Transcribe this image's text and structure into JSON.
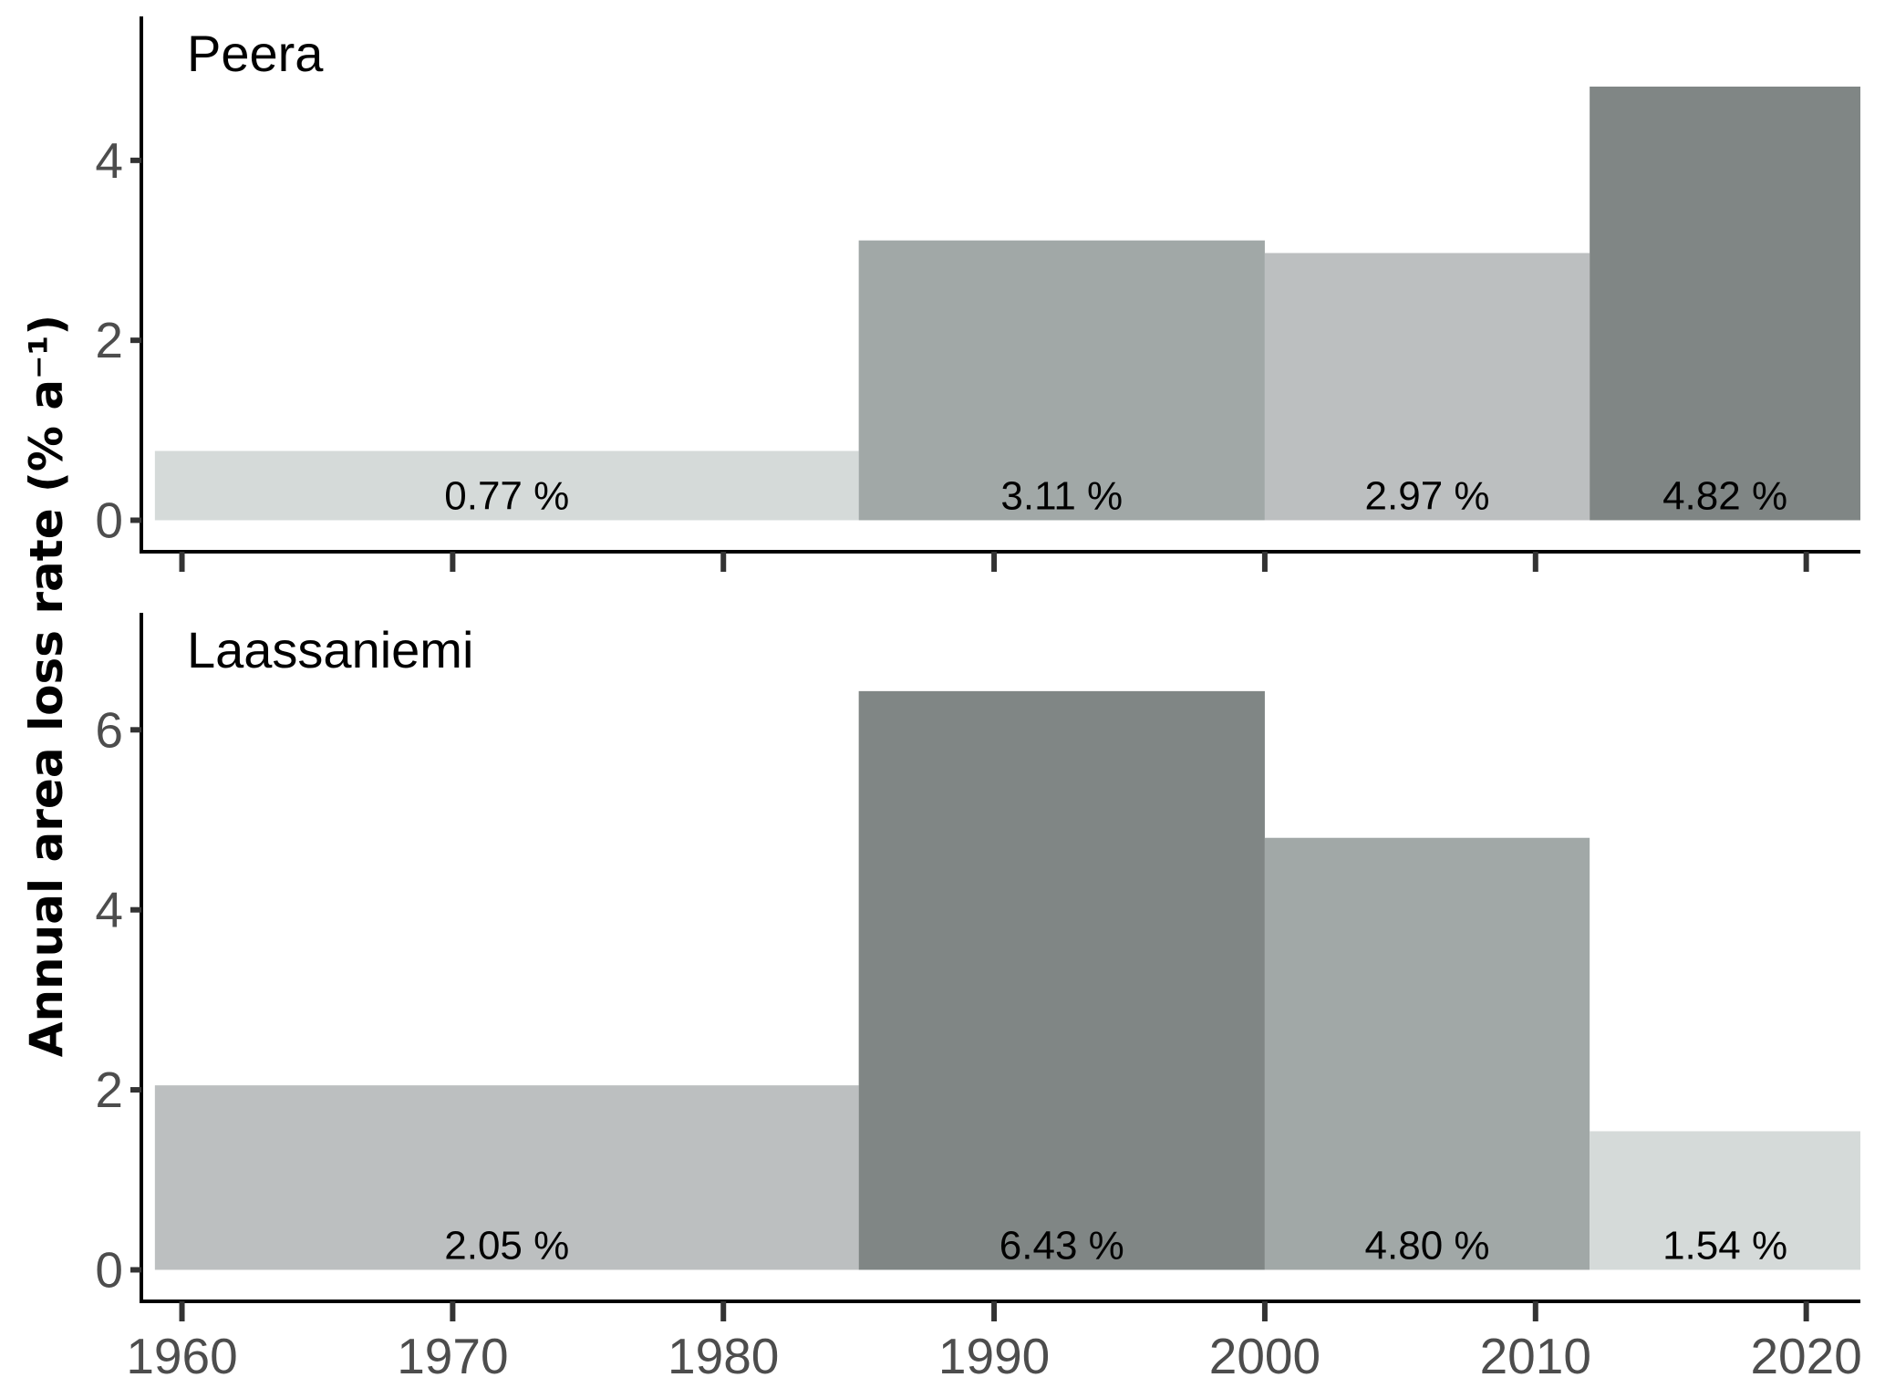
{
  "chart_data": {
    "type": "bar",
    "ylabel": "Annual area loss rate (% a⁻¹)",
    "xlim": [
      1958.5,
      2022
    ],
    "x_ticks": [
      1960,
      1970,
      1980,
      1990,
      2000,
      2010,
      2020
    ],
    "x_tick_labels": [
      "1960",
      "1970",
      "1980",
      "1990",
      "2000",
      "2010",
      "2020"
    ],
    "grid": false,
    "panels": [
      {
        "title": "Peera",
        "ylim": [
          -0.35,
          5.6
        ],
        "y_ticks": [
          0,
          2,
          4
        ],
        "y_tick_labels": [
          "0",
          "2",
          "4"
        ],
        "bars": [
          {
            "x_start": 1959,
            "x_end": 1985,
            "value": 0.77,
            "label": "0.77 %",
            "color": "#d5dad9"
          },
          {
            "x_start": 1985,
            "x_end": 2000,
            "value": 3.11,
            "label": "3.11 %",
            "color": "#a1a8a7"
          },
          {
            "x_start": 2000,
            "x_end": 2012,
            "value": 2.97,
            "label": "2.97 %",
            "color": "#bcbfc0"
          },
          {
            "x_start": 2012,
            "x_end": 2022,
            "value": 4.82,
            "label": "4.82 %",
            "color": "#808685"
          }
        ]
      },
      {
        "title": "Laassaniemi",
        "ylim": [
          -0.35,
          7.3
        ],
        "y_ticks": [
          0,
          2,
          4,
          6
        ],
        "y_tick_labels": [
          "0",
          "2",
          "4",
          "6"
        ],
        "bars": [
          {
            "x_start": 1959,
            "x_end": 1985,
            "value": 2.05,
            "label": "2.05 %",
            "color": "#bcbfc0"
          },
          {
            "x_start": 1985,
            "x_end": 2000,
            "value": 6.43,
            "label": "6.43 %",
            "color": "#808685"
          },
          {
            "x_start": 2000,
            "x_end": 2012,
            "value": 4.8,
            "label": "4.80 %",
            "color": "#a1a8a7"
          },
          {
            "x_start": 2012,
            "x_end": 2022,
            "value": 1.54,
            "label": "1.54 %",
            "color": "#d5dad9"
          }
        ]
      }
    ]
  }
}
